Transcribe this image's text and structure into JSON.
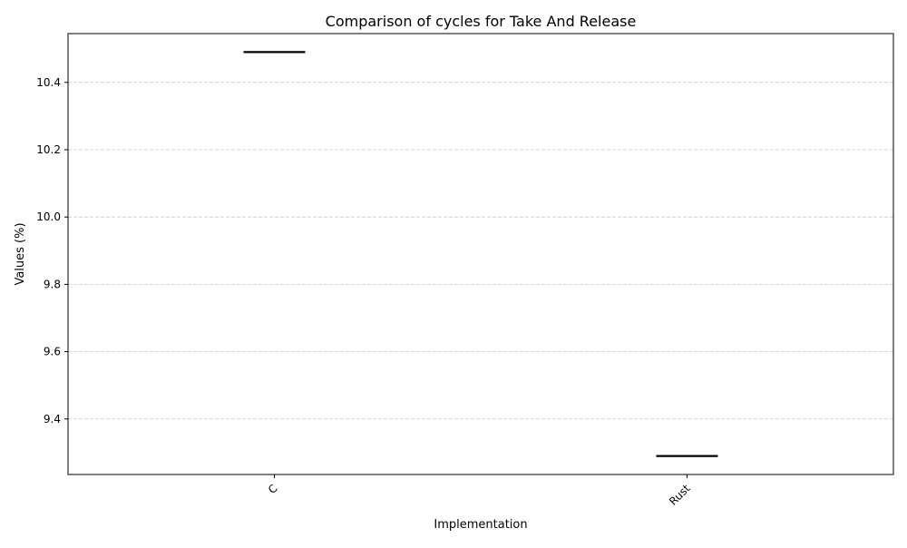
{
  "chart_data": {
    "type": "box",
    "title": "Comparison of cycles for Take And Release",
    "xlabel": "Implementation",
    "ylabel": "Values (%)",
    "categories": [
      "C",
      "Rust"
    ],
    "values": [
      10.49,
      9.29
    ],
    "ylim": [
      9.235,
      10.545
    ],
    "yticks": [
      9.4,
      9.6,
      9.8,
      10.0,
      10.2,
      10.4
    ],
    "ytick_labels": [
      "9.4",
      "9.6",
      "9.8",
      "10.0",
      "10.2",
      "10.4"
    ],
    "grid": {
      "y": true,
      "x": false,
      "style": "dashed",
      "color": "#c8c8c8"
    },
    "median_color": "#000000",
    "xtick_rotation": 45
  }
}
